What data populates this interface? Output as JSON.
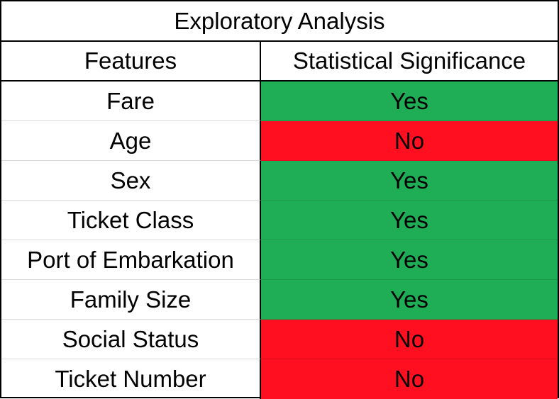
{
  "table": {
    "title": "Exploratory Analysis",
    "headers": {
      "features": "Features",
      "significance": "Statistical Significance"
    },
    "rows": [
      {
        "feature": "Fare",
        "significance": "Yes"
      },
      {
        "feature": "Age",
        "significance": "No"
      },
      {
        "feature": "Sex",
        "significance": "Yes"
      },
      {
        "feature": "Ticket Class",
        "significance": "Yes"
      },
      {
        "feature": "Port of Embarkation",
        "significance": "Yes"
      },
      {
        "feature": "Family Size",
        "significance": "Yes"
      },
      {
        "feature": "Social Status",
        "significance": "No"
      },
      {
        "feature": "Ticket Number",
        "significance": "No"
      }
    ]
  },
  "colors": {
    "yes": "#1fae55",
    "no": "#ff0f1f"
  }
}
